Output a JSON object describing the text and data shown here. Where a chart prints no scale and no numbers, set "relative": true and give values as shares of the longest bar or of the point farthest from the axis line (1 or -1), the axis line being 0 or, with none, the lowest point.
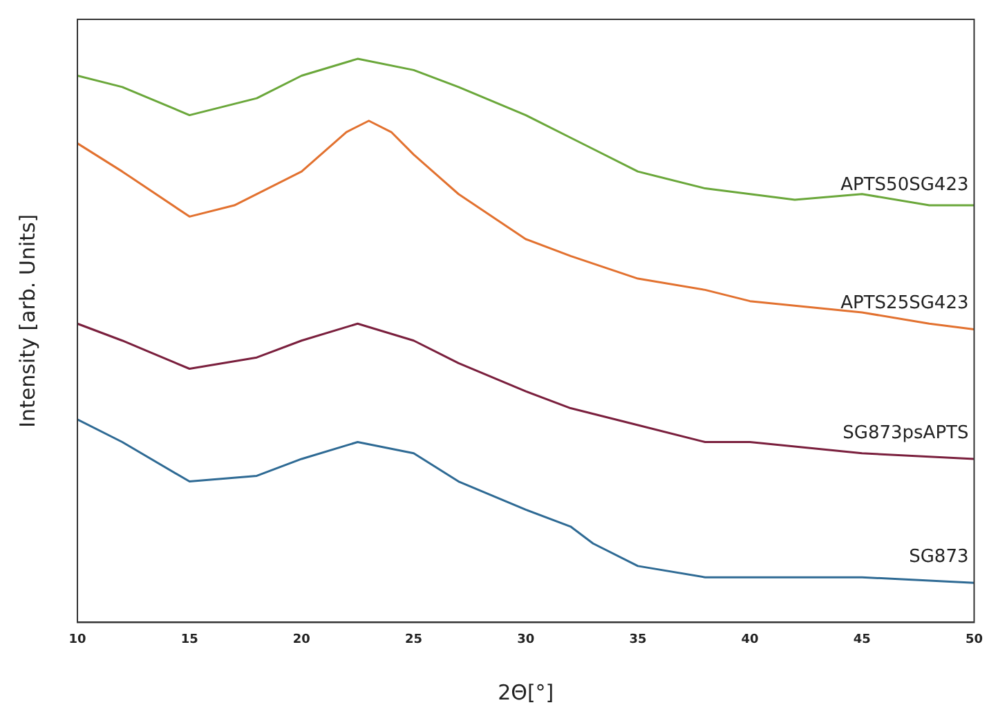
{
  "chart_data": {
    "type": "line",
    "relative": true,
    "xlabel": "2Θ[°]",
    "ylabel": "Intensity [arb. Units]",
    "xlim": [
      10,
      50
    ],
    "xticks": [
      10,
      15,
      20,
      25,
      30,
      35,
      40,
      45,
      50
    ],
    "grid": false,
    "legend": false,
    "marker": "none",
    "line_style": "solid",
    "series": [
      {
        "name": "APTS50SG423",
        "color": "#6aa73a",
        "x": [
          10,
          12,
          15,
          18,
          20,
          22.5,
          25,
          27,
          30,
          32,
          33,
          35,
          38,
          40,
          42,
          45,
          48,
          50
        ],
        "values": [
          0.97,
          0.95,
          0.9,
          0.93,
          0.97,
          1.0,
          0.98,
          0.95,
          0.9,
          0.86,
          0.84,
          0.8,
          0.77,
          0.76,
          0.75,
          0.76,
          0.74,
          0.74
        ]
      },
      {
        "name": "APTS25SG423",
        "color": "#e2712f",
        "x": [
          10,
          12,
          15,
          17,
          20,
          22,
          23,
          24,
          25,
          27,
          30,
          32,
          35,
          38,
          40,
          45,
          48,
          50
        ],
        "values": [
          0.85,
          0.8,
          0.72,
          0.74,
          0.8,
          0.87,
          0.89,
          0.87,
          0.83,
          0.76,
          0.68,
          0.65,
          0.61,
          0.59,
          0.57,
          0.55,
          0.53,
          0.52
        ]
      },
      {
        "name": "SG873psAPTS",
        "color": "#7a1f3d",
        "x": [
          10,
          12,
          15,
          18,
          20,
          22.5,
          25,
          27,
          30,
          32,
          35,
          38,
          40,
          45,
          50
        ],
        "values": [
          0.53,
          0.5,
          0.45,
          0.47,
          0.5,
          0.53,
          0.5,
          0.46,
          0.41,
          0.38,
          0.35,
          0.32,
          0.32,
          0.3,
          0.29
        ]
      },
      {
        "name": "SG873",
        "color": "#2e6a94",
        "x": [
          10,
          12,
          15,
          18,
          20,
          22.5,
          25,
          27,
          30,
          32,
          33,
          35,
          38,
          40,
          45,
          50
        ],
        "values": [
          0.36,
          0.32,
          0.25,
          0.26,
          0.29,
          0.32,
          0.3,
          0.25,
          0.2,
          0.17,
          0.14,
          0.1,
          0.08,
          0.08,
          0.08,
          0.07
        ]
      }
    ]
  }
}
